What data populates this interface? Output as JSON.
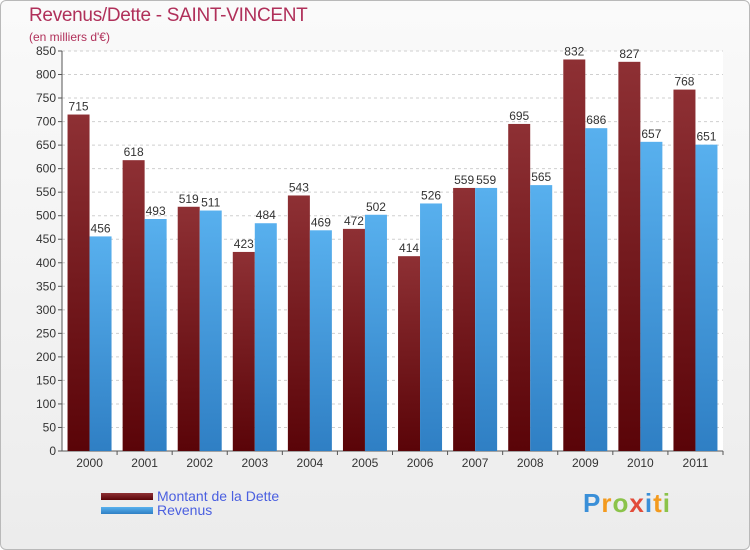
{
  "title": "Revenus/Dette - SAINT-VINCENT",
  "subtitle": "(en milliers d'€)",
  "legend": {
    "dette": "Montant de la Dette",
    "revenus": "Revenus"
  },
  "logo": {
    "text": "Proxiti"
  },
  "colors": {
    "dette": "#7a1419",
    "dette_light": "#9a3a3e",
    "revenus": "#4fa8e8",
    "revenus_dark": "#3586cc",
    "title": "#b0305a",
    "legend_text": "#4a5fe0"
  },
  "chart_data": {
    "type": "bar",
    "title": "Revenus/Dette - SAINT-VINCENT",
    "ylabel": "(en milliers d'€)",
    "xlabel": "",
    "ylim": [
      0,
      850
    ],
    "ytick_step": 50,
    "grid": true,
    "legend_position": "bottom-left",
    "categories": [
      "2000",
      "2001",
      "2002",
      "2003",
      "2004",
      "2005",
      "2006",
      "2007",
      "2008",
      "2009",
      "2010",
      "2011"
    ],
    "series": [
      {
        "name": "Montant de la Dette",
        "values": [
          715,
          618,
          519,
          423,
          543,
          472,
          414,
          559,
          695,
          832,
          827,
          768
        ]
      },
      {
        "name": "Revenus",
        "values": [
          456,
          493,
          511,
          484,
          469,
          502,
          526,
          559,
          565,
          686,
          657,
          651
        ]
      }
    ]
  }
}
